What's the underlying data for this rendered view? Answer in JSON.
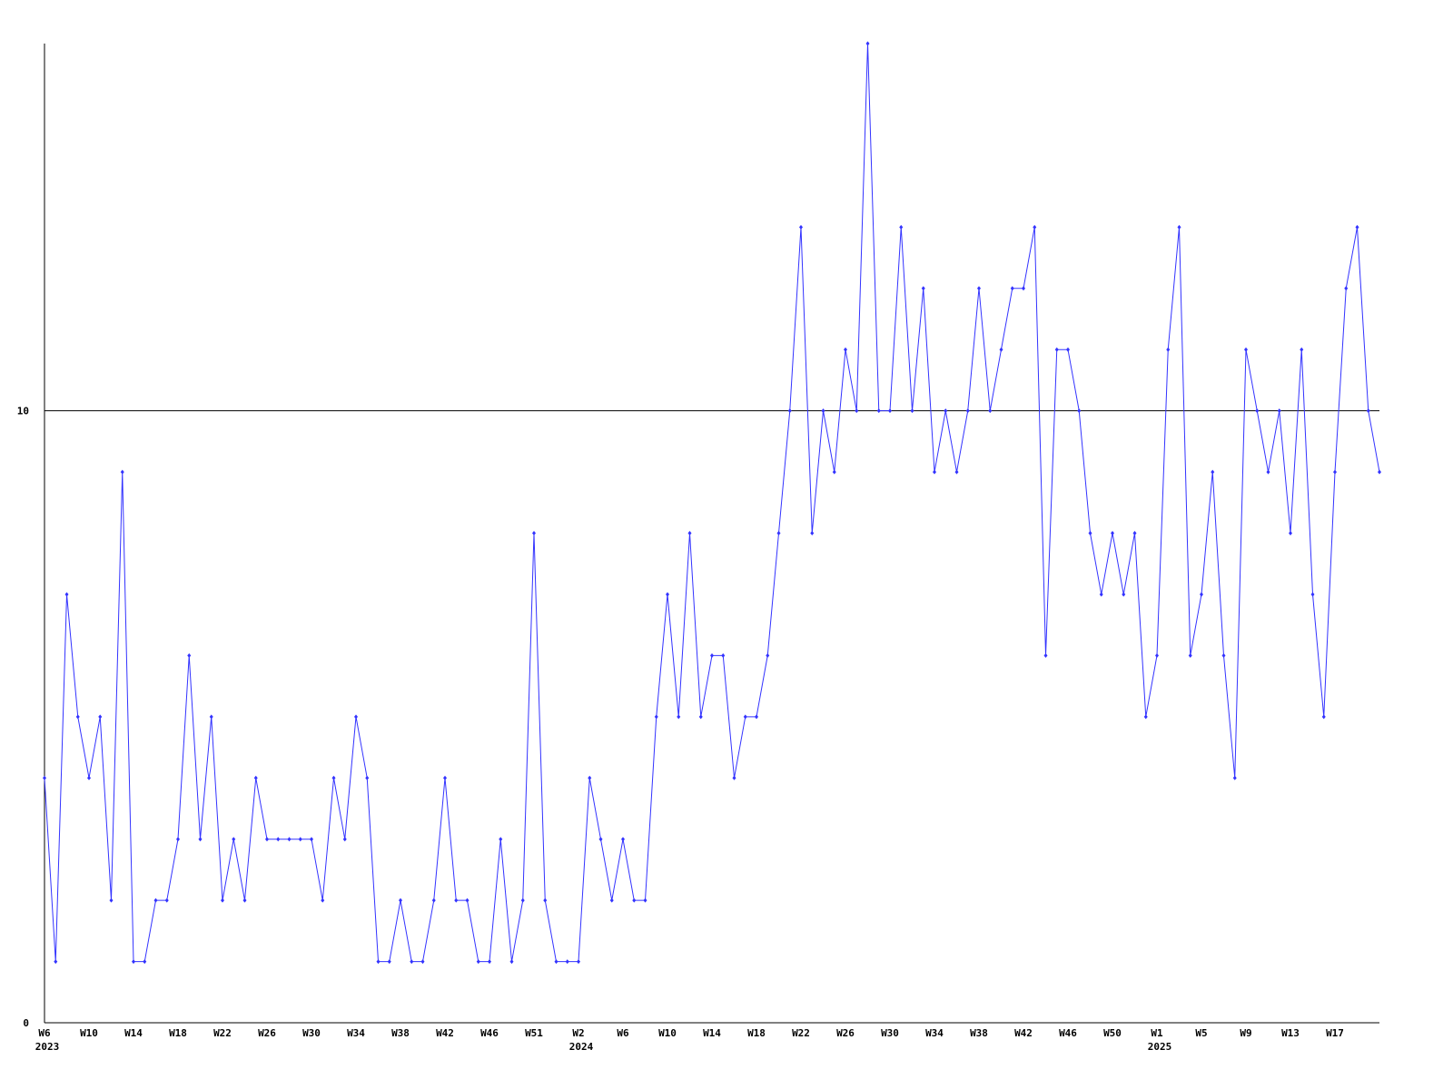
{
  "chart_data": {
    "type": "line",
    "categories": [
      "W6",
      null,
      null,
      null,
      "W10",
      null,
      null,
      null,
      "W14",
      null,
      null,
      null,
      "W18",
      null,
      null,
      null,
      "W22",
      null,
      null,
      null,
      "W26",
      null,
      null,
      null,
      "W30",
      null,
      null,
      null,
      "W34",
      null,
      null,
      null,
      "W38",
      null,
      null,
      null,
      "W42",
      null,
      null,
      null,
      "W46",
      null,
      null,
      null,
      "W51",
      null,
      null,
      null,
      "W2",
      null,
      null,
      null,
      "W6",
      null,
      null,
      null,
      "W10",
      null,
      null,
      null,
      "W14",
      null,
      null,
      null,
      "W18",
      null,
      null,
      null,
      "W22",
      null,
      null,
      null,
      "W26",
      null,
      null,
      null,
      "W30",
      null,
      null,
      null,
      "W34",
      null,
      null,
      null,
      "W38",
      null,
      null,
      null,
      "W42",
      null,
      null,
      null,
      "W46",
      null,
      null,
      null,
      "W50",
      null,
      null,
      null,
      "W1",
      null,
      null,
      null,
      "W5",
      null,
      null,
      null,
      "W9",
      null,
      null,
      null,
      "W13",
      null,
      null,
      null,
      "W17",
      null,
      null,
      null,
      null
    ],
    "x_group_labels": [
      {
        "value": 0,
        "label": "2023"
      },
      {
        "value": 48,
        "label": "2024"
      },
      {
        "value": 100,
        "label": "2025"
      }
    ],
    "series": [
      {
        "color": "#3333ff",
        "values": [
          4,
          1,
          7,
          5,
          4,
          5,
          2,
          9,
          1,
          1,
          2,
          2,
          3,
          6,
          3,
          5,
          2,
          3,
          2,
          4,
          3,
          3,
          3,
          3,
          3,
          2,
          4,
          3,
          5,
          4,
          1,
          1,
          2,
          1,
          1,
          2,
          4,
          2,
          2,
          1,
          1,
          3,
          1,
          2,
          8,
          2,
          1,
          1,
          1,
          4,
          3,
          2,
          3,
          2,
          2,
          5,
          7,
          5,
          8,
          5,
          6,
          6,
          4,
          5,
          5,
          6,
          8,
          10,
          13,
          8,
          10,
          9,
          11,
          10,
          16,
          10,
          10,
          13,
          10,
          12,
          9,
          10,
          9,
          10,
          12,
          10,
          11,
          12,
          12,
          13,
          6,
          11,
          11,
          10,
          8,
          7,
          8,
          7,
          8,
          5,
          6,
          11,
          13,
          6,
          7,
          9,
          6,
          4,
          11,
          10,
          9,
          10,
          8,
          11,
          7,
          5,
          9,
          12,
          13,
          10,
          9
        ]
      }
    ],
    "ylim": [
      0,
      16
    ],
    "yticks": [
      0,
      10
    ],
    "grid": true
  }
}
